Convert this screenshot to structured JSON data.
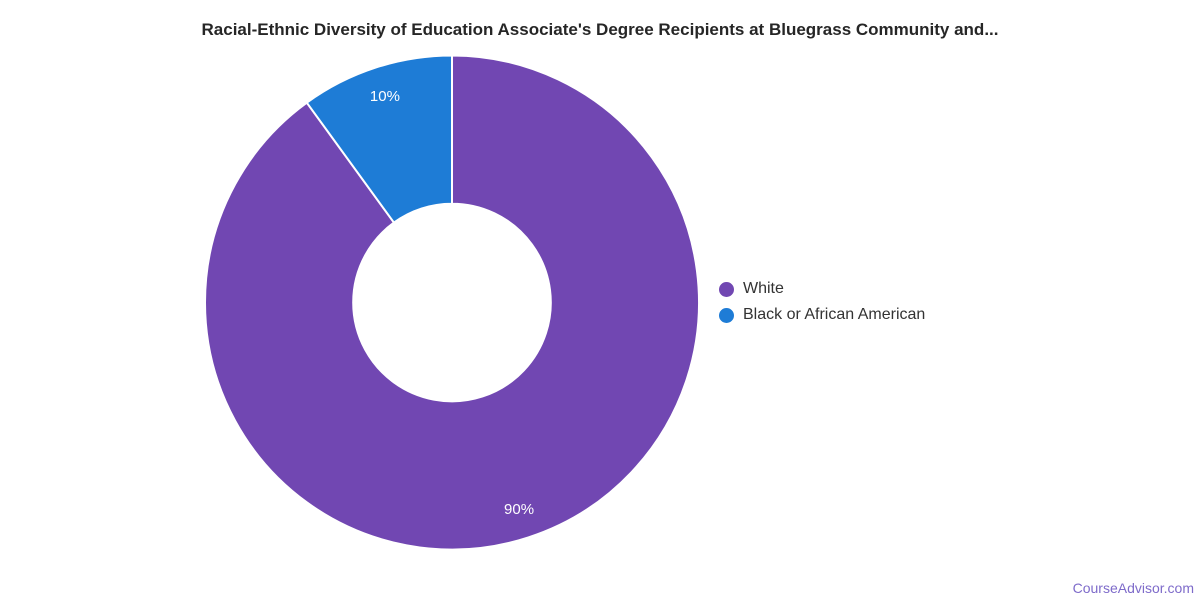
{
  "chart_data": {
    "type": "pie",
    "title": "Racial-Ethnic Diversity of Education Associate's Degree Recipients at Bluegrass Community and...",
    "donut": true,
    "inner_radius_ratio": 0.4,
    "start_angle_deg": 0,
    "direction": "clockwise",
    "legend_position": "middle-right",
    "data_labels": "inside",
    "slices": [
      {
        "label": "White",
        "value": 90,
        "display": "90%",
        "color": "#7147B2"
      },
      {
        "label": "Black or African American",
        "value": 10,
        "display": "10%",
        "color": "#1E7CD6"
      }
    ]
  },
  "watermark": {
    "text": "CourseAdvisor.com",
    "color": "#7E6BCA"
  }
}
